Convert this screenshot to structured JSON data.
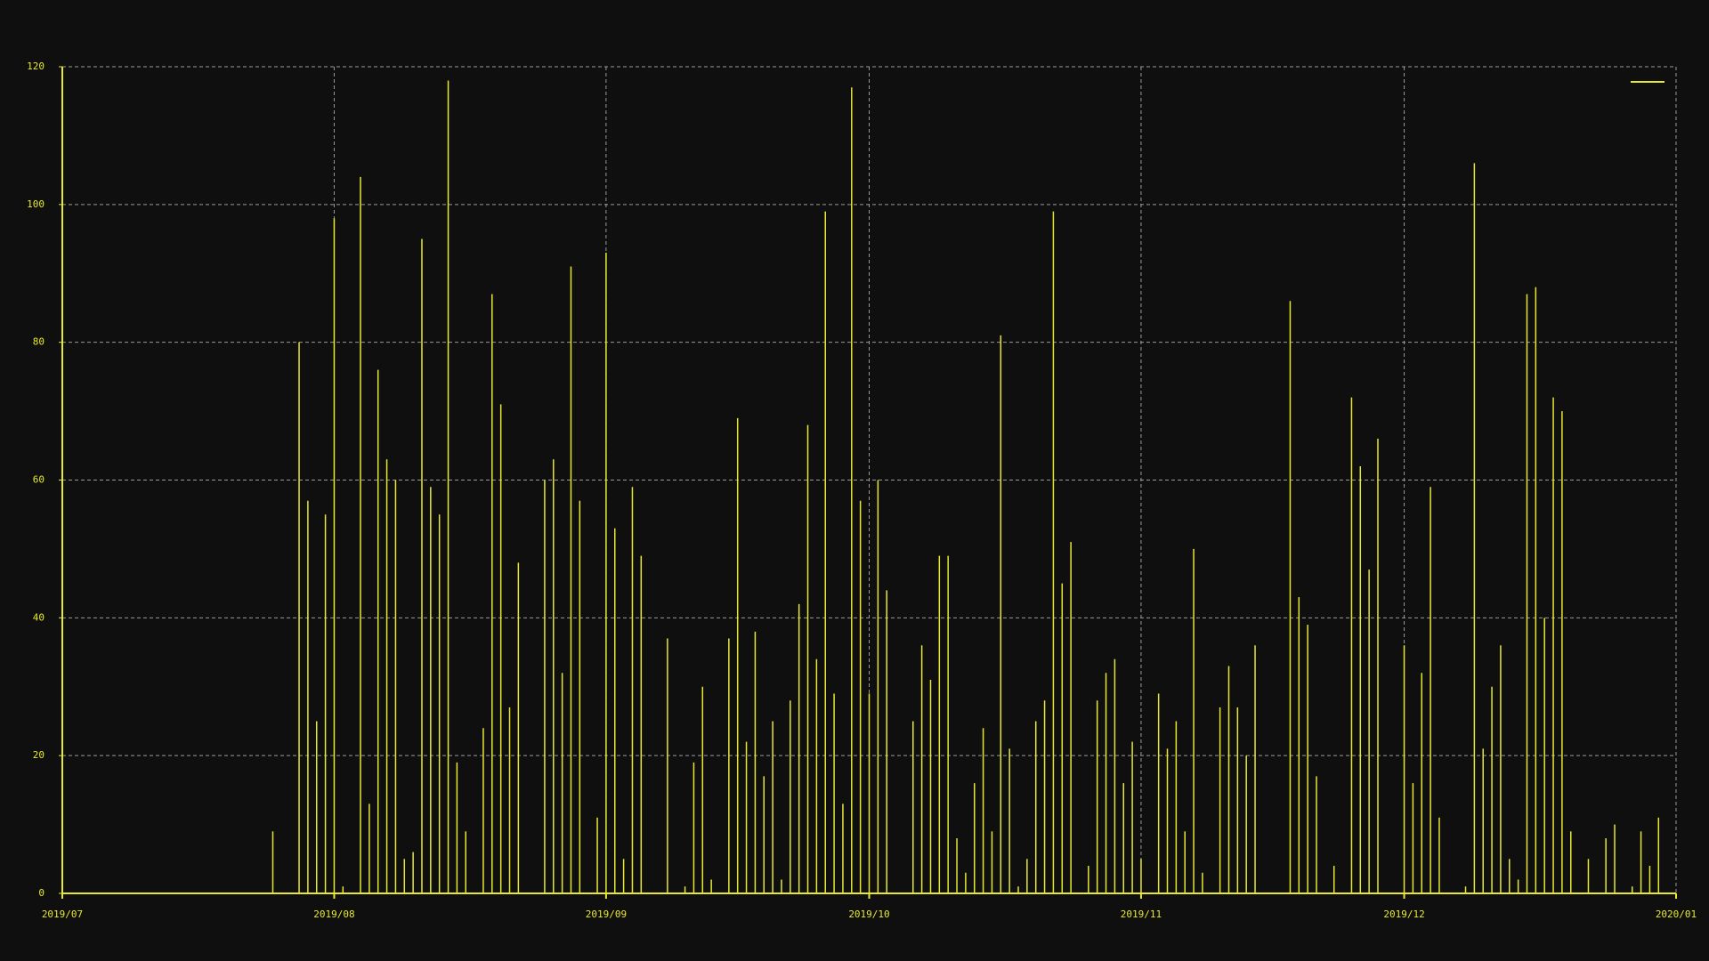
{
  "chart_data": {
    "type": "stem",
    "x": [
      24,
      27,
      28,
      29,
      30,
      31,
      32,
      34,
      35,
      36,
      37,
      38,
      39,
      40,
      41,
      42,
      43,
      44,
      45,
      46,
      48,
      49,
      50,
      51,
      52,
      55,
      56,
      57,
      58,
      59,
      61,
      62,
      63,
      64,
      65,
      66,
      69,
      71,
      72,
      73,
      74,
      76,
      77,
      78,
      79,
      80,
      81,
      82,
      83,
      84,
      85,
      86,
      87,
      88,
      89,
      90,
      91,
      92,
      93,
      94,
      97,
      98,
      99,
      100,
      101,
      102,
      103,
      104,
      105,
      106,
      107,
      108,
      109,
      110,
      111,
      112,
      113,
      114,
      115,
      117,
      118,
      119,
      120,
      121,
      122,
      123,
      125,
      126,
      127,
      128,
      129,
      130,
      132,
      133,
      134,
      135,
      136,
      140,
      141,
      142,
      143,
      145,
      147,
      148,
      149,
      150,
      153,
      154,
      155,
      156,
      157,
      160,
      161,
      162,
      163,
      164,
      165,
      166,
      167,
      168,
      169,
      170,
      171,
      172,
      174,
      176,
      177,
      179,
      180,
      181,
      182
    ],
    "series": [
      {
        "color": "#e8e830",
        "values": [
          9,
          80,
          57,
          25,
          55,
          98,
          1,
          104,
          13,
          76,
          63,
          60,
          5,
          6,
          95,
          59,
          55,
          118,
          19,
          9,
          24,
          87,
          71,
          27,
          48,
          60,
          63,
          32,
          91,
          57,
          11,
          93,
          53,
          5,
          59,
          49,
          37,
          1,
          19,
          30,
          2,
          37,
          69,
          22,
          38,
          17,
          25,
          2,
          28,
          42,
          68,
          34,
          99,
          29,
          13,
          117,
          57,
          29,
          60,
          44,
          25,
          36,
          31,
          49,
          49,
          8,
          3,
          16,
          24,
          9,
          81,
          21,
          1,
          5,
          25,
          28,
          99,
          45,
          51,
          4,
          28,
          32,
          34,
          16,
          22,
          5,
          29,
          21,
          25,
          9,
          50,
          3,
          27,
          33,
          27,
          20,
          36,
          86,
          43,
          39,
          17,
          4,
          72,
          62,
          47,
          66,
          36,
          16,
          32,
          59,
          11,
          1,
          106,
          21,
          30,
          36,
          5,
          2,
          87,
          88,
          40,
          72,
          70,
          9,
          5,
          8,
          10,
          1,
          9,
          4,
          11
        ]
      }
    ],
    "xlim": [
      0,
      184
    ],
    "xticks": [
      {
        "value": 0,
        "label": "2019/07"
      },
      {
        "value": 31,
        "label": "2019/08"
      },
      {
        "value": 62,
        "label": "2019/09"
      },
      {
        "value": 92,
        "label": "2019/10"
      },
      {
        "value": 123,
        "label": "2019/11"
      },
      {
        "value": 153,
        "label": "2019/12"
      },
      {
        "value": 184,
        "label": "2020/01"
      }
    ],
    "ylim": [
      0,
      120
    ],
    "yticks": [
      0,
      20,
      40,
      60,
      80,
      100,
      120
    ],
    "grid": true
  }
}
